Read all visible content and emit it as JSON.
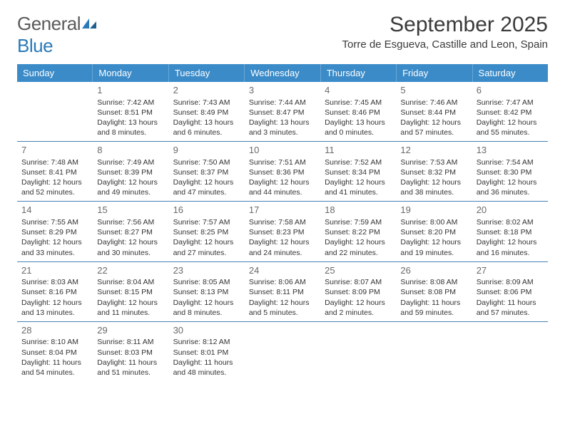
{
  "logo": {
    "text1": "General",
    "text2": "Blue"
  },
  "title": "September 2025",
  "location": "Torre de Esgueva, Castille and Leon, Spain",
  "colors": {
    "header_bg": "#3b8bc9",
    "header_text": "#ffffff",
    "divider": "#4682b4",
    "text": "#333333",
    "daynum": "#6a6a6a",
    "logo_gray": "#5a5a5a",
    "logo_blue": "#2a7ab8"
  },
  "days_of_week": [
    "Sunday",
    "Monday",
    "Tuesday",
    "Wednesday",
    "Thursday",
    "Friday",
    "Saturday"
  ],
  "weeks": [
    [
      null,
      {
        "n": "1",
        "sr": "7:42 AM",
        "ss": "8:51 PM",
        "dl": "13 hours and 8 minutes."
      },
      {
        "n": "2",
        "sr": "7:43 AM",
        "ss": "8:49 PM",
        "dl": "13 hours and 6 minutes."
      },
      {
        "n": "3",
        "sr": "7:44 AM",
        "ss": "8:47 PM",
        "dl": "13 hours and 3 minutes."
      },
      {
        "n": "4",
        "sr": "7:45 AM",
        "ss": "8:46 PM",
        "dl": "13 hours and 0 minutes."
      },
      {
        "n": "5",
        "sr": "7:46 AM",
        "ss": "8:44 PM",
        "dl": "12 hours and 57 minutes."
      },
      {
        "n": "6",
        "sr": "7:47 AM",
        "ss": "8:42 PM",
        "dl": "12 hours and 55 minutes."
      }
    ],
    [
      {
        "n": "7",
        "sr": "7:48 AM",
        "ss": "8:41 PM",
        "dl": "12 hours and 52 minutes."
      },
      {
        "n": "8",
        "sr": "7:49 AM",
        "ss": "8:39 PM",
        "dl": "12 hours and 49 minutes."
      },
      {
        "n": "9",
        "sr": "7:50 AM",
        "ss": "8:37 PM",
        "dl": "12 hours and 47 minutes."
      },
      {
        "n": "10",
        "sr": "7:51 AM",
        "ss": "8:36 PM",
        "dl": "12 hours and 44 minutes."
      },
      {
        "n": "11",
        "sr": "7:52 AM",
        "ss": "8:34 PM",
        "dl": "12 hours and 41 minutes."
      },
      {
        "n": "12",
        "sr": "7:53 AM",
        "ss": "8:32 PM",
        "dl": "12 hours and 38 minutes."
      },
      {
        "n": "13",
        "sr": "7:54 AM",
        "ss": "8:30 PM",
        "dl": "12 hours and 36 minutes."
      }
    ],
    [
      {
        "n": "14",
        "sr": "7:55 AM",
        "ss": "8:29 PM",
        "dl": "12 hours and 33 minutes."
      },
      {
        "n": "15",
        "sr": "7:56 AM",
        "ss": "8:27 PM",
        "dl": "12 hours and 30 minutes."
      },
      {
        "n": "16",
        "sr": "7:57 AM",
        "ss": "8:25 PM",
        "dl": "12 hours and 27 minutes."
      },
      {
        "n": "17",
        "sr": "7:58 AM",
        "ss": "8:23 PM",
        "dl": "12 hours and 24 minutes."
      },
      {
        "n": "18",
        "sr": "7:59 AM",
        "ss": "8:22 PM",
        "dl": "12 hours and 22 minutes."
      },
      {
        "n": "19",
        "sr": "8:00 AM",
        "ss": "8:20 PM",
        "dl": "12 hours and 19 minutes."
      },
      {
        "n": "20",
        "sr": "8:02 AM",
        "ss": "8:18 PM",
        "dl": "12 hours and 16 minutes."
      }
    ],
    [
      {
        "n": "21",
        "sr": "8:03 AM",
        "ss": "8:16 PM",
        "dl": "12 hours and 13 minutes."
      },
      {
        "n": "22",
        "sr": "8:04 AM",
        "ss": "8:15 PM",
        "dl": "12 hours and 11 minutes."
      },
      {
        "n": "23",
        "sr": "8:05 AM",
        "ss": "8:13 PM",
        "dl": "12 hours and 8 minutes."
      },
      {
        "n": "24",
        "sr": "8:06 AM",
        "ss": "8:11 PM",
        "dl": "12 hours and 5 minutes."
      },
      {
        "n": "25",
        "sr": "8:07 AM",
        "ss": "8:09 PM",
        "dl": "12 hours and 2 minutes."
      },
      {
        "n": "26",
        "sr": "8:08 AM",
        "ss": "8:08 PM",
        "dl": "11 hours and 59 minutes."
      },
      {
        "n": "27",
        "sr": "8:09 AM",
        "ss": "8:06 PM",
        "dl": "11 hours and 57 minutes."
      }
    ],
    [
      {
        "n": "28",
        "sr": "8:10 AM",
        "ss": "8:04 PM",
        "dl": "11 hours and 54 minutes."
      },
      {
        "n": "29",
        "sr": "8:11 AM",
        "ss": "8:03 PM",
        "dl": "11 hours and 51 minutes."
      },
      {
        "n": "30",
        "sr": "8:12 AM",
        "ss": "8:01 PM",
        "dl": "11 hours and 48 minutes."
      },
      null,
      null,
      null,
      null
    ]
  ],
  "labels": {
    "sunrise": "Sunrise:",
    "sunset": "Sunset:",
    "daylight": "Daylight:"
  }
}
